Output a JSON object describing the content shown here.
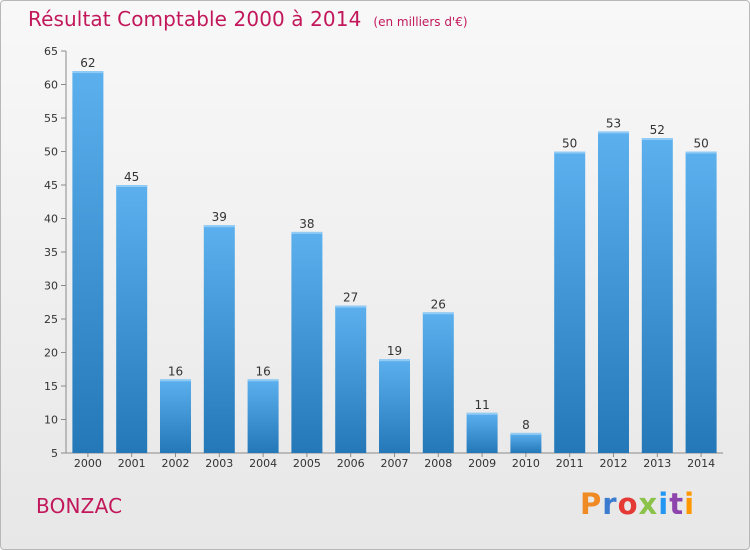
{
  "header": {
    "title": "Résultat Comptable 2000 à 2014",
    "subtitle": "(en milliers d'€)"
  },
  "footer": {
    "town": "BONZAC",
    "brand": "Proxiti",
    "brand_colors": [
      "#f08a24",
      "#3b7bd0",
      "#e53935",
      "#8bc34a",
      "#2196f3",
      "#8e44ad",
      "#ff9800"
    ]
  },
  "colors": {
    "title": "#c2185b",
    "bar_top": "#5cb0ee",
    "bar_bottom": "#2478b8",
    "axis": "#8a8a8a",
    "grid": "#b8b8b8"
  },
  "chart_data": {
    "type": "bar",
    "title": "Résultat Comptable 2000 à 2014",
    "subtitle": "(en milliers d'€)",
    "categories": [
      "2000",
      "2001",
      "2002",
      "2003",
      "2004",
      "2005",
      "2006",
      "2007",
      "2008",
      "2009",
      "2010",
      "2011",
      "2012",
      "2013",
      "2014"
    ],
    "values": [
      62,
      45,
      16,
      39,
      16,
      38,
      27,
      19,
      26,
      11,
      8,
      50,
      53,
      52,
      50
    ],
    "ylim": [
      5,
      65
    ],
    "yticks": [
      5,
      10,
      15,
      20,
      25,
      30,
      35,
      40,
      45,
      50,
      55,
      60,
      65
    ],
    "grid": false,
    "data_labels": true
  }
}
